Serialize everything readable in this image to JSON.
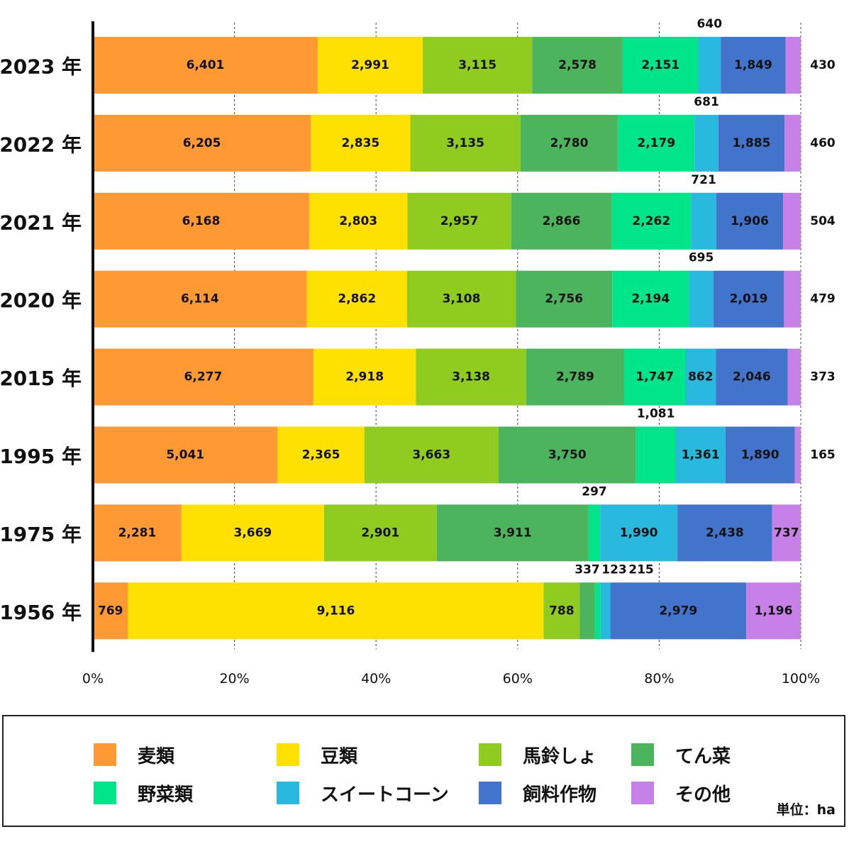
{
  "chart_data": {
    "type": "bar",
    "orientation": "horizontal",
    "stacked": "percent",
    "title": "",
    "xlabel": "",
    "ylabel": "",
    "xlim": [
      0,
      100
    ],
    "categories": [
      "2023 年",
      "2022 年",
      "2021 年",
      "2020 年",
      "2015 年",
      "1995 年",
      "1975 年",
      "1956 年"
    ],
    "series": [
      {
        "name": "麦類",
        "color": "#FF9933",
        "values": [
          6401,
          6205,
          6168,
          6114,
          6277,
          5041,
          2281,
          769
        ]
      },
      {
        "name": "豆類",
        "color": "#FFE100",
        "values": [
          2991,
          2835,
          2803,
          2862,
          2918,
          2365,
          3669,
          9116
        ]
      },
      {
        "name": "馬鈴しょ",
        "color": "#8FCC1F",
        "values": [
          3115,
          3135,
          2957,
          3108,
          3138,
          3663,
          2901,
          788
        ]
      },
      {
        "name": "てん菜",
        "color": "#4DB45E",
        "values": [
          2578,
          2780,
          2866,
          2756,
          2789,
          3750,
          3911,
          337
        ]
      },
      {
        "name": "野菜類",
        "color": "#00E58A",
        "values": [
          2151,
          2179,
          2262,
          2194,
          1747,
          1081,
          297,
          123
        ]
      },
      {
        "name": "スイートコーン",
        "color": "#29B8DE",
        "values": [
          640,
          681,
          721,
          695,
          862,
          1361,
          1990,
          215
        ]
      },
      {
        "name": "飼料作物",
        "color": "#4374CC",
        "values": [
          1849,
          1885,
          1906,
          2019,
          2046,
          1890,
          2438,
          2979
        ]
      },
      {
        "name": "その他",
        "color": "#C780E8",
        "values": [
          430,
          460,
          504,
          479,
          373,
          165,
          737,
          1196
        ]
      }
    ],
    "x_ticks": [
      "0%",
      "20%",
      "40%",
      "60%",
      "80%",
      "100%"
    ],
    "legend_position": "bottom",
    "unit": "単位：ha",
    "grid": "vertical-dashed"
  }
}
